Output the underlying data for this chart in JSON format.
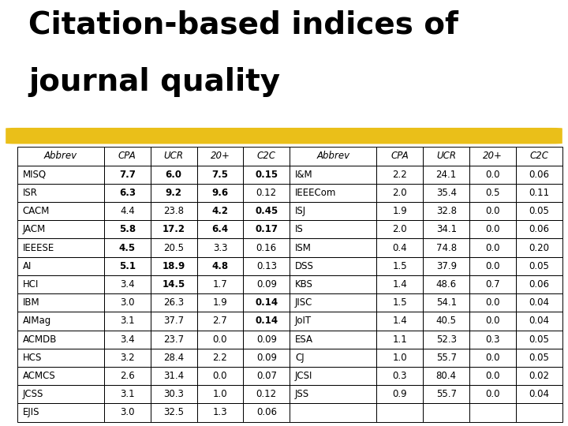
{
  "title_line1": "Citation-based indices of",
  "title_line2": "journal quality",
  "background_color": "#ffffff",
  "title_color": "#000000",
  "highlight_color": "#e8b800",
  "table_border_color": "#000000",
  "header_row": [
    "Abbrev",
    "CPA",
    "UCR",
    "20+",
    "C2C",
    "Abbrev",
    "CPA",
    "UCR",
    "20+",
    "C2C"
  ],
  "left_data": [
    [
      "MISQ",
      "7.7",
      "6.0",
      "7.5",
      "0.15"
    ],
    [
      "ISR",
      "6.3",
      "9.2",
      "9.6",
      "0.12"
    ],
    [
      "CACM",
      "4.4",
      "23.8",
      "4.2",
      "0.45"
    ],
    [
      "JACM",
      "5.8",
      "17.2",
      "6.4",
      "0.17"
    ],
    [
      "IEEESE",
      "4.5",
      "20.5",
      "3.3",
      "0.16"
    ],
    [
      "AI",
      "5.1",
      "18.9",
      "4.8",
      "0.13"
    ],
    [
      "HCI",
      "3.4",
      "14.5",
      "1.7",
      "0.09"
    ],
    [
      "IBM",
      "3.0",
      "26.3",
      "1.9",
      "0.14"
    ],
    [
      "AIMag",
      "3.1",
      "37.7",
      "2.7",
      "0.14"
    ],
    [
      "ACMDB",
      "3.4",
      "23.7",
      "0.0",
      "0.09"
    ],
    [
      "HCS",
      "3.2",
      "28.4",
      "2.2",
      "0.09"
    ],
    [
      "ACMCS",
      "2.6",
      "31.4",
      "0.0",
      "0.07"
    ],
    [
      "JCSS",
      "3.1",
      "30.3",
      "1.0",
      "0.12"
    ],
    [
      "EJIS",
      "3.0",
      "32.5",
      "1.3",
      "0.06"
    ]
  ],
  "right_data": [
    [
      "I&M",
      "2.2",
      "24.1",
      "0.0",
      "0.06"
    ],
    [
      "IEEECom",
      "2.0",
      "35.4",
      "0.5",
      "0.11"
    ],
    [
      "ISJ",
      "1.9",
      "32.8",
      "0.0",
      "0.05"
    ],
    [
      "IS",
      "2.0",
      "34.1",
      "0.0",
      "0.06"
    ],
    [
      "ISM",
      "0.4",
      "74.8",
      "0.0",
      "0.20"
    ],
    [
      "DSS",
      "1.5",
      "37.9",
      "0.0",
      "0.05"
    ],
    [
      "KBS",
      "1.4",
      "48.6",
      "0.7",
      "0.06"
    ],
    [
      "JISC",
      "1.5",
      "54.1",
      "0.0",
      "0.04"
    ],
    [
      "JoIT",
      "1.4",
      "40.5",
      "0.0",
      "0.04"
    ],
    [
      "ESA",
      "1.1",
      "52.3",
      "0.3",
      "0.05"
    ],
    [
      "CJ",
      "1.0",
      "55.7",
      "0.0",
      "0.05"
    ],
    [
      "JCSI",
      "0.3",
      "80.4",
      "0.0",
      "0.02"
    ],
    [
      "JSS",
      "0.9",
      "55.7",
      "0.0",
      "0.04"
    ],
    [
      "",
      "",
      "",
      "",
      ""
    ]
  ],
  "bold_cells_left": {
    "0": [
      1,
      2,
      3,
      4
    ],
    "1": [
      1,
      2,
      3
    ],
    "2": [
      3,
      4
    ],
    "3": [
      1,
      2,
      3,
      4
    ],
    "4": [
      1
    ],
    "5": [
      1,
      2,
      3
    ],
    "6": [
      2
    ],
    "7": [
      4
    ],
    "8": [
      4
    ]
  },
  "title_fontsize": 28,
  "table_fontsize": 8.5,
  "fig_width": 7.2,
  "fig_height": 5.4,
  "fig_dpi": 100
}
